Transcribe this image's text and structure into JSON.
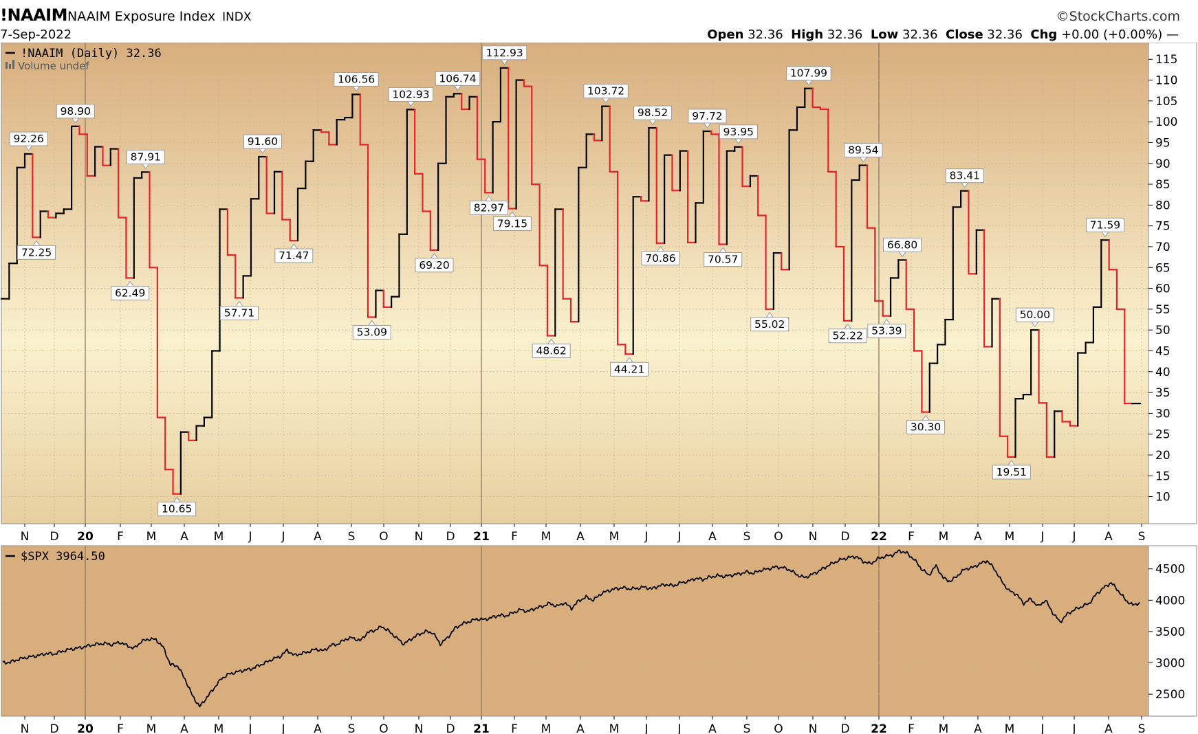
{
  "header": {
    "symbol": "!NAAIM",
    "name": "NAAIM Exposure Index",
    "exchange": "INDX",
    "credit": "©StockCharts.com",
    "date": "7-Sep-2022",
    "ohlc": {
      "open_label": "Open",
      "open": "32.36",
      "high_label": "High",
      "high": "32.36",
      "low_label": "Low",
      "low": "32.36",
      "close_label": "Close",
      "close": "32.36",
      "chg_label": "Chg",
      "chg": "+0.00 (+0.00%)"
    }
  },
  "colors": {
    "up": "#000000",
    "down": "#e8202a",
    "panel_top": "#d9b07f",
    "panel_mid": "#f9f0cc",
    "spx_bg": "#d9ae7d"
  },
  "chart_data": [
    {
      "type": "line",
      "panel": "upper",
      "legend": "!NAAIM (Daily) 32.36",
      "legend_sub": "Volume undef",
      "ylim": [
        3.5,
        119
      ],
      "yticks": [
        10,
        15,
        20,
        25,
        30,
        35,
        40,
        45,
        50,
        55,
        60,
        65,
        70,
        75,
        80,
        85,
        90,
        95,
        100,
        105,
        110,
        115
      ],
      "month_labels": [
        "N",
        "D",
        "20",
        "F",
        "M",
        "A",
        "M",
        "J",
        "J",
        "A",
        "S",
        "O",
        "N",
        "D",
        "21",
        "F",
        "M",
        "A",
        "M",
        "J",
        "J",
        "A",
        "S",
        "O",
        "N",
        "D",
        "22",
        "F",
        "M",
        "A",
        "M",
        "J",
        "J",
        "A",
        "S"
      ],
      "year_labels": [
        "20",
        "21",
        "22"
      ],
      "x_start": "2019-10-16",
      "x_end": "2022-09-07",
      "series": [
        {
          "values": [
            57.5,
            66.0,
            89.0,
            92.26,
            72.25,
            78.5,
            77.0,
            78.0,
            79.0,
            98.9,
            97.0,
            87.0,
            94.0,
            89.5,
            93.5,
            77.0,
            62.49,
            86.5,
            87.91,
            65.0,
            29.0,
            16.5,
            10.65,
            25.5,
            23.5,
            27.0,
            29.0,
            45.0,
            79.0,
            68.0,
            57.71,
            63.0,
            81.5,
            91.6,
            78.0,
            88.0,
            76.5,
            71.47,
            84.0,
            90.5,
            98.0,
            97.5,
            94.5,
            100.5,
            101.0,
            106.56,
            94.5,
            53.09,
            59.5,
            55.5,
            58.0,
            73.0,
            102.93,
            87.5,
            78.5,
            69.2,
            90.0,
            106.0,
            106.74,
            103.0,
            106.0,
            91.0,
            82.97,
            100.0,
            112.93,
            79.15,
            110.0,
            108.5,
            85.0,
            65.5,
            48.62,
            79.0,
            57.5,
            52.0,
            89.0,
            97.0,
            95.5,
            103.72,
            88.0,
            46.5,
            44.21,
            82.0,
            81.0,
            98.52,
            70.86,
            92.0,
            83.5,
            93.0,
            71.0,
            80.5,
            97.72,
            97.0,
            70.57,
            93.0,
            93.95,
            84.5,
            87.0,
            77.5,
            55.02,
            68.5,
            64.5,
            98.0,
            103.5,
            107.99,
            103.5,
            103.0,
            88.0,
            70.0,
            52.22,
            86.0,
            89.54,
            74.5,
            57.0,
            53.39,
            62.5,
            66.8,
            55.0,
            45.0,
            30.3,
            42.0,
            46.5,
            52.5,
            79.5,
            83.41,
            63.5,
            74.0,
            46.0,
            57.5,
            24.5,
            19.51,
            33.5,
            34.5,
            50.0,
            32.5,
            19.5,
            30.5,
            28.0,
            27.0,
            44.5,
            47.0,
            55.5,
            71.59,
            64.5,
            55.0,
            32.36,
            32.36
          ]
        }
      ],
      "annotations": [
        {
          "i": 3,
          "text": "92.26",
          "pos": "above"
        },
        {
          "i": 4,
          "text": "72.25",
          "pos": "below"
        },
        {
          "i": 9,
          "text": "98.90",
          "pos": "above"
        },
        {
          "i": 16,
          "text": "62.49",
          "pos": "below"
        },
        {
          "i": 18,
          "text": "87.91",
          "pos": "above"
        },
        {
          "i": 22,
          "text": "10.65",
          "pos": "below"
        },
        {
          "i": 30,
          "text": "57.71",
          "pos": "below"
        },
        {
          "i": 33,
          "text": "91.60",
          "pos": "above"
        },
        {
          "i": 37,
          "text": "71.47",
          "pos": "below"
        },
        {
          "i": 45,
          "text": "106.56",
          "pos": "above"
        },
        {
          "i": 47,
          "text": "53.09",
          "pos": "below"
        },
        {
          "i": 52,
          "text": "102.93",
          "pos": "above"
        },
        {
          "i": 55,
          "text": "69.20",
          "pos": "below"
        },
        {
          "i": 58,
          "text": "106.74",
          "pos": "above"
        },
        {
          "i": 62,
          "text": "82.97",
          "pos": "below"
        },
        {
          "i": 64,
          "text": "112.93",
          "pos": "above"
        },
        {
          "i": 65,
          "text": "79.15",
          "pos": "below"
        },
        {
          "i": 70,
          "text": "48.62",
          "pos": "below"
        },
        {
          "i": 77,
          "text": "103.72",
          "pos": "above"
        },
        {
          "i": 80,
          "text": "44.21",
          "pos": "below"
        },
        {
          "i": 83,
          "text": "98.52",
          "pos": "above"
        },
        {
          "i": 84,
          "text": "70.86",
          "pos": "below"
        },
        {
          "i": 90,
          "text": "97.72",
          "pos": "above"
        },
        {
          "i": 92,
          "text": "70.57",
          "pos": "below"
        },
        {
          "i": 94,
          "text": "93.95",
          "pos": "above"
        },
        {
          "i": 98,
          "text": "55.02",
          "pos": "below"
        },
        {
          "i": 103,
          "text": "107.99",
          "pos": "above"
        },
        {
          "i": 108,
          "text": "52.22",
          "pos": "below"
        },
        {
          "i": 110,
          "text": "89.54",
          "pos": "above"
        },
        {
          "i": 113,
          "text": "53.39",
          "pos": "below"
        },
        {
          "i": 115,
          "text": "66.80",
          "pos": "above"
        },
        {
          "i": 118,
          "text": "30.30",
          "pos": "below"
        },
        {
          "i": 123,
          "text": "83.41",
          "pos": "above"
        },
        {
          "i": 129,
          "text": "19.51",
          "pos": "below"
        },
        {
          "i": 132,
          "text": "50.00",
          "pos": "above"
        },
        {
          "i": 141,
          "text": "71.59",
          "pos": "above"
        }
      ]
    },
    {
      "type": "line",
      "panel": "lower",
      "legend": "$SPX 3964.50",
      "ylim": [
        2150,
        4870
      ],
      "yticks": [
        2500,
        3000,
        3500,
        4000,
        4500
      ],
      "month_labels": [
        "N",
        "D",
        "20",
        "F",
        "M",
        "A",
        "M",
        "J",
        "J",
        "A",
        "S",
        "O",
        "N",
        "D",
        "21",
        "F",
        "M",
        "A",
        "M",
        "J",
        "J",
        "A",
        "S",
        "O",
        "N",
        "D",
        "22",
        "F",
        "M",
        "A",
        "M",
        "J",
        "J",
        "A",
        "S"
      ],
      "year_labels": [
        "20",
        "21",
        "22"
      ],
      "series": [
        {
          "values": [
            3000,
            3010,
            3050,
            3080,
            3100,
            3120,
            3150,
            3140,
            3180,
            3210,
            3230,
            3250,
            3280,
            3300,
            3310,
            3290,
            3330,
            3280,
            3230,
            3340,
            3380,
            3373,
            3250,
            2970,
            2950,
            2740,
            2480,
            2300,
            2450,
            2600,
            2750,
            2820,
            2850,
            2880,
            2900,
            2950,
            3000,
            3060,
            3100,
            3200,
            3120,
            3150,
            3180,
            3220,
            3190,
            3280,
            3300,
            3380,
            3400,
            3350,
            3480,
            3520,
            3580,
            3500,
            3400,
            3300,
            3380,
            3450,
            3500,
            3480,
            3300,
            3400,
            3550,
            3620,
            3660,
            3700,
            3690,
            3720,
            3760,
            3750,
            3800,
            3850,
            3820,
            3870,
            3900,
            3950,
            3900,
            3960,
            3870,
            3990,
            4050,
            4000,
            4100,
            4150,
            4180,
            4200,
            4180,
            4190,
            4210,
            4180,
            4230,
            4250,
            4230,
            4280,
            4300,
            4350,
            4330,
            4370,
            4390,
            4380,
            4400,
            4420,
            4450,
            4430,
            4480,
            4500,
            4530,
            4520,
            4480,
            4400,
            4360,
            4410,
            4470,
            4540,
            4600,
            4650,
            4680,
            4700,
            4620,
            4580,
            4660,
            4700,
            4720,
            4790,
            4750,
            4650,
            4500,
            4400,
            4550,
            4350,
            4300,
            4400,
            4500,
            4520,
            4580,
            4630,
            4500,
            4300,
            4150,
            4100,
            3950,
            4020,
            3900,
            4000,
            3800,
            3650,
            3780,
            3850,
            3900,
            3950,
            4100,
            4200,
            4280,
            4150,
            4000,
            3920,
            3964.5
          ]
        }
      ]
    }
  ]
}
